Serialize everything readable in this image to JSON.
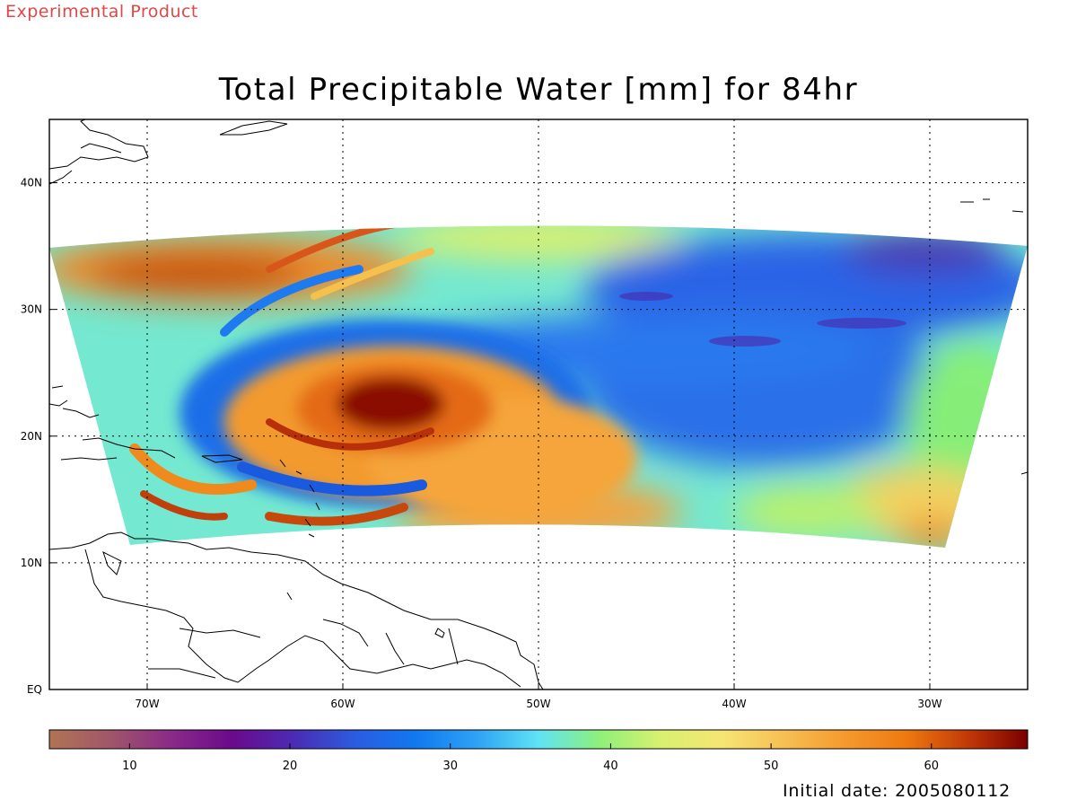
{
  "header": {
    "experimental_label": "Experimental Product",
    "title": "Total Precipitable Water [mm] for 84hr"
  },
  "footer": {
    "initial_date": "Initial date: 2005080112"
  },
  "map": {
    "lon_range": [
      -75,
      -25
    ],
    "lat_range": [
      0,
      45
    ],
    "lon_ticks": [
      {
        "value": -70,
        "label": "70W"
      },
      {
        "value": -60,
        "label": "60W"
      },
      {
        "value": -50,
        "label": "50W"
      },
      {
        "value": -40,
        "label": "40W"
      },
      {
        "value": -30,
        "label": "30W"
      }
    ],
    "lat_ticks": [
      {
        "value": 0,
        "label": "EQ"
      },
      {
        "value": 10,
        "label": "10N"
      },
      {
        "value": 20,
        "label": "20N"
      },
      {
        "value": 30,
        "label": "30N"
      },
      {
        "value": 40,
        "label": "40N"
      }
    ],
    "grid": "dotted",
    "field": "Total Precipitable Water",
    "units": "mm"
  },
  "colorbar": {
    "range": [
      5,
      66
    ],
    "tick_values": [
      10,
      20,
      30,
      40,
      50,
      60
    ],
    "tick_labels": [
      "10",
      "20",
      "30",
      "40",
      "50",
      "60"
    ],
    "colors": [
      "#b07454",
      "#a0566a",
      "#8a2a88",
      "#6a0a8c",
      "#4b2bb4",
      "#2b5ce0",
      "#1079f0",
      "#2ea3f5",
      "#5fe3f5",
      "#8ef07a",
      "#d8f070",
      "#f6e574",
      "#f7c054",
      "#f59a2e",
      "#ee7a10",
      "#c33a08",
      "#7a0000"
    ]
  }
}
